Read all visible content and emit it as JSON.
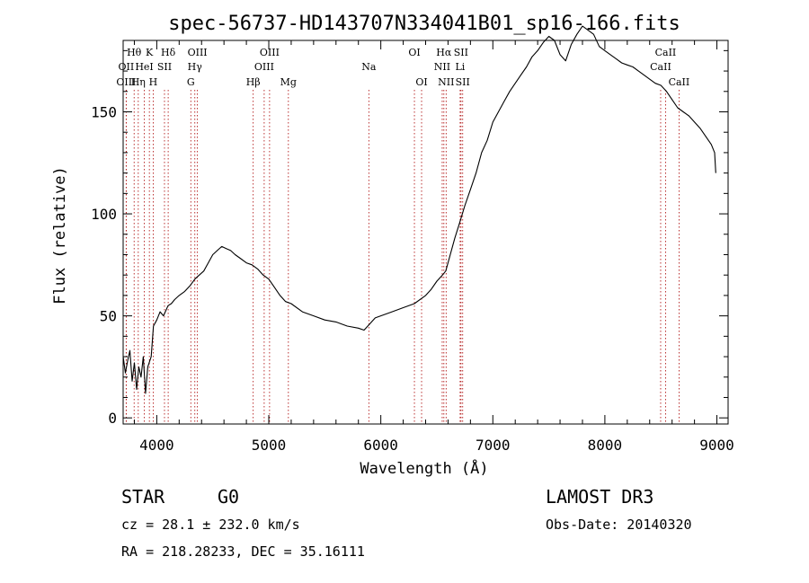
{
  "chart_data": {
    "type": "line",
    "title": "spec-56737-HD143707N334041B01_sp16-166.fits",
    "xlabel": "Wavelength (Å)",
    "ylabel": "Flux (relative)",
    "xlim": [
      3700,
      9100
    ],
    "ylim": [
      -3,
      185
    ],
    "xticks": [
      4000,
      5000,
      6000,
      7000,
      8000,
      9000
    ],
    "yticks": [
      0,
      50,
      100,
      150
    ],
    "series": [
      {
        "name": "spectrum",
        "x": [
          3700,
          3720,
          3740,
          3760,
          3780,
          3800,
          3820,
          3840,
          3860,
          3880,
          3900,
          3920,
          3950,
          3970,
          4000,
          4030,
          4060,
          4100,
          4130,
          4160,
          4200,
          4250,
          4300,
          4340,
          4380,
          4420,
          4460,
          4500,
          4540,
          4580,
          4620,
          4660,
          4700,
          4750,
          4800,
          4850,
          4900,
          4950,
          5000,
          5050,
          5100,
          5150,
          5200,
          5300,
          5400,
          5500,
          5600,
          5700,
          5800,
          5850,
          5900,
          5950,
          6000,
          6100,
          6200,
          6300,
          6400,
          6450,
          6500,
          6550,
          6580,
          6620,
          6660,
          6700,
          6750,
          6800,
          6850,
          6900,
          6950,
          7000,
          7050,
          7100,
          7150,
          7200,
          7250,
          7300,
          7350,
          7400,
          7450,
          7500,
          7550,
          7600,
          7650,
          7700,
          7750,
          7800,
          7850,
          7900,
          7950,
          8000,
          8050,
          8100,
          8150,
          8200,
          8250,
          8300,
          8350,
          8400,
          8450,
          8500,
          8550,
          8600,
          8650,
          8700,
          8750,
          8800,
          8850,
          8900,
          8950,
          8980,
          8990
        ],
        "values": [
          30,
          22,
          28,
          33,
          18,
          27,
          14,
          25,
          20,
          30,
          12,
          25,
          30,
          45,
          48,
          52,
          50,
          55,
          56,
          58,
          60,
          62,
          65,
          68,
          70,
          72,
          76,
          80,
          82,
          84,
          83,
          82,
          80,
          78,
          76,
          75,
          73,
          70,
          68,
          64,
          60,
          57,
          56,
          52,
          50,
          48,
          47,
          45,
          44,
          43,
          46,
          49,
          50,
          52,
          54,
          56,
          60,
          63,
          67,
          70,
          72,
          80,
          88,
          95,
          104,
          112,
          120,
          130,
          136,
          145,
          150,
          155,
          160,
          164,
          168,
          172,
          177,
          180,
          184,
          187,
          185,
          178,
          175,
          183,
          188,
          192,
          190,
          188,
          182,
          180,
          178,
          176,
          174,
          173,
          172,
          170,
          168,
          166,
          164,
          163,
          160,
          156,
          152,
          150,
          148,
          145,
          142,
          138,
          134,
          130,
          120
        ]
      }
    ],
    "line_markers": [
      {
        "label": "Hθ",
        "wl": 3798,
        "row": 1
      },
      {
        "label": "OII",
        "wl": 3727,
        "row": 2
      },
      {
        "label": "OIII",
        "wl": 3727,
        "row": 3
      },
      {
        "label": "Hη",
        "wl": 3835,
        "row": 3
      },
      {
        "label": "HeI",
        "wl": 3889,
        "row": 2
      },
      {
        "label": "K",
        "wl": 3934,
        "row": 1
      },
      {
        "label": "H",
        "wl": 3968,
        "row": 3
      },
      {
        "label": "SII",
        "wl": 4069,
        "row": 2
      },
      {
        "label": "Hδ",
        "wl": 4102,
        "row": 1
      },
      {
        "label": "OIII",
        "wl": 4363,
        "row": 1
      },
      {
        "label": "Hγ",
        "wl": 4340,
        "row": 2
      },
      {
        "label": "G",
        "wl": 4304,
        "row": 3
      },
      {
        "label": "Hβ",
        "wl": 4861,
        "row": 3
      },
      {
        "label": "OIII",
        "wl": 4959,
        "row": 2
      },
      {
        "label": "OIII",
        "wl": 5007,
        "row": 1
      },
      {
        "label": "Mg",
        "wl": 5175,
        "row": 3
      },
      {
        "label": "Na",
        "wl": 5893,
        "row": 2
      },
      {
        "label": "OI",
        "wl": 6300,
        "row": 1
      },
      {
        "label": "OI",
        "wl": 6364,
        "row": 3
      },
      {
        "label": "NII",
        "wl": 6548,
        "row": 2
      },
      {
        "label": "Hα",
        "wl": 6563,
        "row": 1
      },
      {
        "label": "NII",
        "wl": 6583,
        "row": 3
      },
      {
        "label": "SII",
        "wl": 6716,
        "row": 1
      },
      {
        "label": "Li",
        "wl": 6708,
        "row": 2
      },
      {
        "label": "SII",
        "wl": 6731,
        "row": 3
      },
      {
        "label": "CaII",
        "wl": 8498,
        "row": 2
      },
      {
        "label": "CaII",
        "wl": 8542,
        "row": 1
      },
      {
        "label": "CaII",
        "wl": 8662,
        "row": 3
      }
    ]
  },
  "info": {
    "object_class": "STAR",
    "subclass": "G0",
    "survey": "LAMOST DR3",
    "cz": "cz = 28.1 ± 232.0 km/s",
    "obs_date": "Obs-Date: 20140320",
    "coords": "RA = 218.28233, DEC =  35.16111"
  },
  "colors": {
    "line": "#000000",
    "marker": "#aa0000"
  }
}
